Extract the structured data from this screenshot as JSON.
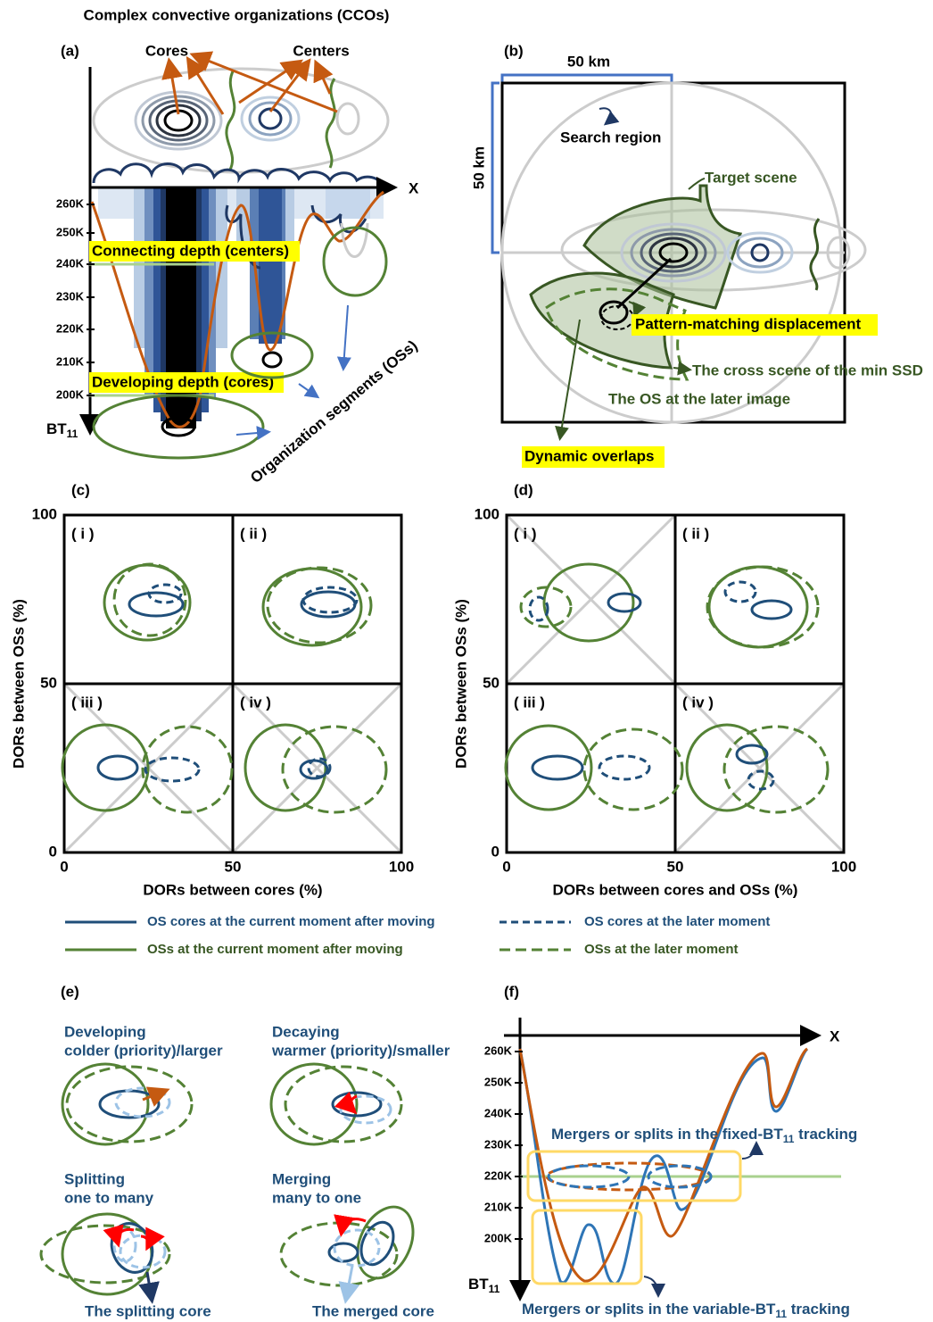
{
  "panel_a": {
    "label": "(a)",
    "title": "Complex convective organizations (CCOs)",
    "cores": "Cores",
    "centers": "Centers",
    "x_axis": "X",
    "y_ticks": [
      "260K",
      "250K",
      "240K",
      "230K",
      "220K",
      "210K",
      "200K"
    ],
    "y_axis": {
      "text": "BT",
      "subscript": "11"
    },
    "connecting_depth": "Connecting depth (centers)",
    "developing_depth": "Developing depth (cores)",
    "segments": "Organization segments (OSs)"
  },
  "panel_b": {
    "label": "(b)",
    "width": "50 km",
    "height": "50 km",
    "search_region": "Search region",
    "target_scene": "Target scene",
    "displacement": "Pattern-matching displacement",
    "cross_scene": "The cross scene of the min SSD",
    "later_os": "The OS at the later image",
    "dynamic_overlaps": "Dynamic overlaps"
  },
  "panel_c": {
    "label": "(c)",
    "y_axis": "DORs between OSs (%)",
    "x_axis": "DORs between cores (%)",
    "x_ticks": [
      0,
      50,
      100
    ],
    "y_ticks": [
      0,
      50,
      100
    ],
    "quadrants": [
      "( i )",
      "( ii )",
      "( iii )",
      "( iv )"
    ]
  },
  "panel_d": {
    "label": "(d)",
    "y_axis": "DORs between OSs (%)",
    "x_axis": "DORs between cores and OSs (%)",
    "x_ticks": [
      0,
      50,
      100
    ],
    "y_ticks": [
      0,
      50,
      100
    ],
    "quadrants": [
      "( i )",
      "( ii )",
      "( iii )",
      "( iv )"
    ]
  },
  "legend": [
    "OS cores at the current moment after moving",
    "OSs at the current moment after moving",
    "OS cores at the later moment",
    "OSs at the later moment"
  ],
  "panel_e": {
    "label": "(e)",
    "cases": [
      {
        "lines": [
          "Developing",
          "colder (priority)/larger"
        ]
      },
      {
        "lines": [
          "Decaying",
          "warmer (priority)/smaller"
        ]
      },
      {
        "lines": [
          "Splitting",
          "one to many"
        ]
      },
      {
        "lines": [
          "Merging",
          "many to one"
        ]
      }
    ],
    "splitting_core": "The splitting core",
    "merged_core": "The merged core"
  },
  "panel_f": {
    "label": "(f)",
    "x_axis": "X",
    "y_ticks": [
      "260K",
      "250K",
      "240K",
      "230K",
      "220K",
      "210K",
      "200K"
    ],
    "y_axis": {
      "text": "BT",
      "subscript": "11"
    },
    "fixed_note": {
      "before": "Mergers or splits in the fixed-BT",
      "subscript": "11",
      "after": " tracking"
    },
    "variable_note": {
      "before": "Mergers or splits in the variable-BT",
      "subscript": "11",
      "after": " tracking"
    }
  }
}
